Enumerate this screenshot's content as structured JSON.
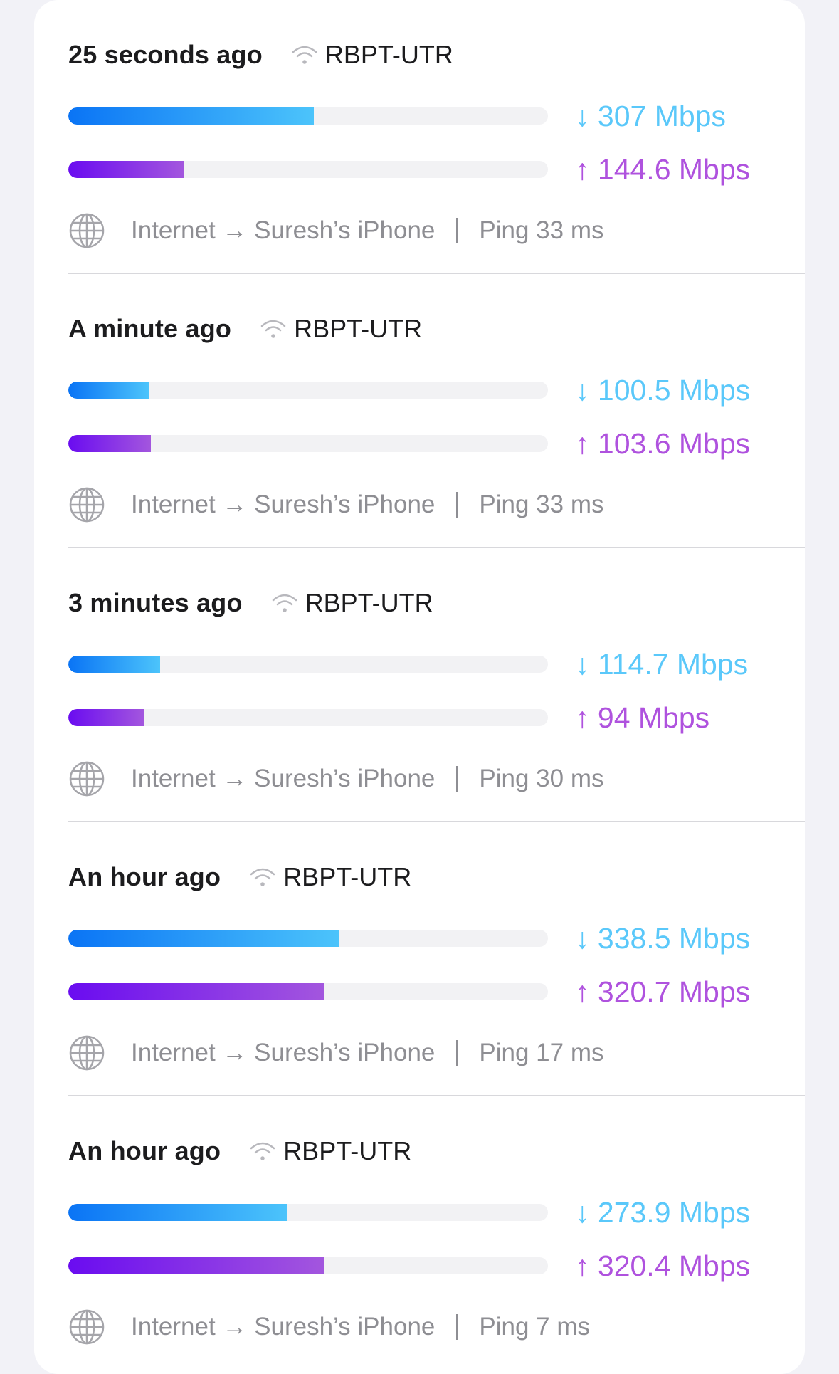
{
  "max_speed_mbps": 600,
  "colors": {
    "download": "#5ac8fa",
    "upload": "#af52de",
    "secondary_text": "#8e8e93"
  },
  "icons": {
    "network": "wifi-icon",
    "route": "globe-icon"
  },
  "entries": [
    {
      "time": "25 seconds ago",
      "network": "RBPT-UTR",
      "download": "↓ 307 Mbps",
      "download_value": 307,
      "upload": "↑ 144.6 Mbps",
      "upload_value": 144.6,
      "route": "Internet → Suresh’s iPhone",
      "ping": "Ping 33 ms"
    },
    {
      "time": "A minute ago",
      "network": "RBPT-UTR",
      "download": "↓ 100.5 Mbps",
      "download_value": 100.5,
      "upload": "↑ 103.6 Mbps",
      "upload_value": 103.6,
      "route": "Internet → Suresh’s iPhone",
      "ping": "Ping 33 ms"
    },
    {
      "time": "3 minutes ago",
      "network": "RBPT-UTR",
      "download": "↓ 114.7 Mbps",
      "download_value": 114.7,
      "upload": "↑ 94 Mbps",
      "upload_value": 94,
      "route": "Internet → Suresh’s iPhone",
      "ping": "Ping 30 ms"
    },
    {
      "time": "An hour ago",
      "network": "RBPT-UTR",
      "download": "↓ 338.5 Mbps",
      "download_value": 338.5,
      "upload": "↑ 320.7 Mbps",
      "upload_value": 320.7,
      "route": "Internet → Suresh’s iPhone",
      "ping": "Ping 17 ms"
    },
    {
      "time": "An hour ago",
      "network": "RBPT-UTR",
      "download": "↓ 273.9 Mbps",
      "download_value": 273.9,
      "upload": "↑ 320.4 Mbps",
      "upload_value": 320.4,
      "route": "Internet → Suresh’s iPhone",
      "ping": "Ping 7 ms"
    }
  ]
}
